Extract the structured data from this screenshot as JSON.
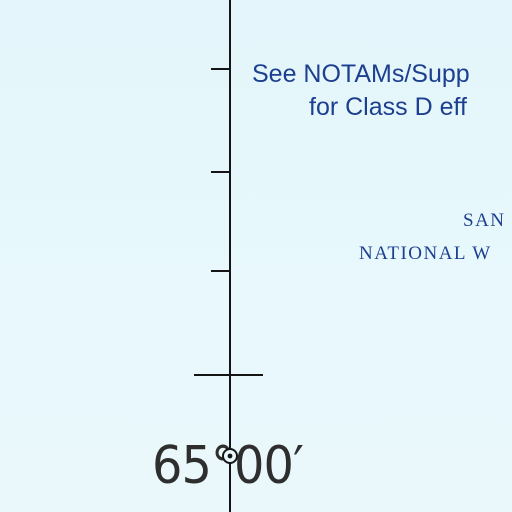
{
  "notam_note": {
    "line1": "See NOTAMs/Supp",
    "line2": "for Class D eff"
  },
  "area_label": {
    "line1": "SAN",
    "line2": "NATIONAL W"
  },
  "graticule": {
    "longitude_label": "65°00′"
  },
  "colors": {
    "background": "#e6f7fb",
    "annotation_blue": "#1c3f8f",
    "graticule_black": "#151515",
    "label_gray": "#2e2e2e"
  },
  "icons": {
    "station_marker": "reporting-point-icon"
  }
}
